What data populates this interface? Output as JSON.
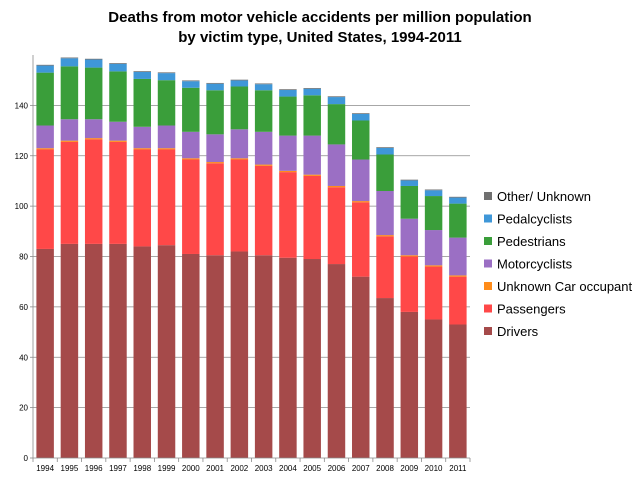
{
  "chart_data": {
    "type": "bar",
    "stacked": true,
    "title_line1": "Deaths from motor vehicle accidents per million population",
    "title_line2": "by victim type, United States, 1994-2011",
    "xlabel": "",
    "ylabel": "",
    "ylim": [
      0,
      160
    ],
    "yticks": [
      0,
      20,
      40,
      60,
      80,
      100,
      120,
      140
    ],
    "grid": true,
    "legend_position": "right",
    "categories": [
      "1994",
      "1995",
      "1996",
      "1997",
      "1998",
      "1999",
      "2000",
      "2001",
      "2002",
      "2003",
      "2004",
      "2005",
      "2006",
      "2007",
      "2008",
      "2009",
      "2010",
      "2011"
    ],
    "series": [
      {
        "name": "Drivers",
        "color": "#a54a4a",
        "values": [
          83,
          85,
          85,
          85,
          84,
          84.5,
          81,
          80.5,
          82,
          80.5,
          79.5,
          79,
          77,
          72,
          63.5,
          58,
          55,
          53
        ]
      },
      {
        "name": "Passengers",
        "color": "#ff4848",
        "values": [
          39.5,
          40.5,
          41.5,
          40.5,
          38.5,
          38,
          37.5,
          36.5,
          36.5,
          35.5,
          34,
          33,
          30.5,
          29.5,
          24.5,
          22,
          21,
          19
        ]
      },
      {
        "name": "Unknown Car occupant",
        "color": "#ff8c1a",
        "values": [
          0.5,
          0.5,
          0.5,
          0.5,
          0.5,
          0.5,
          0.5,
          0.5,
          0.5,
          0.5,
          0.5,
          0.5,
          0.5,
          0.5,
          0.5,
          0.5,
          0.5,
          0.5
        ]
      },
      {
        "name": "Motorcyclists",
        "color": "#9b6fc4",
        "values": [
          9,
          8.5,
          7.5,
          7.5,
          8.5,
          9,
          10.5,
          11,
          11.5,
          13,
          14,
          15.5,
          16.5,
          16.5,
          17.5,
          14.5,
          14,
          15
        ]
      },
      {
        "name": "Pedestrians",
        "color": "#3a9e3a",
        "values": [
          21,
          21,
          20.5,
          20,
          19,
          18,
          17.5,
          17.5,
          17,
          16.5,
          15.5,
          16,
          16,
          15.5,
          14.5,
          13,
          13.5,
          13.5
        ]
      },
      {
        "name": "Pedalcyclists",
        "color": "#3f97d8",
        "values": [
          2.8,
          3.2,
          3.2,
          3,
          2.8,
          2.8,
          2.6,
          2.6,
          2.4,
          2.4,
          2.6,
          2.6,
          2.8,
          2.6,
          2.6,
          2.2,
          2.3,
          2.4
        ]
      },
      {
        "name": "Other/ Unknown",
        "color": "#707070",
        "values": [
          0.3,
          0.3,
          0.3,
          0.3,
          0.3,
          0.3,
          0.3,
          0.3,
          0.3,
          0.3,
          0.3,
          0.3,
          0.3,
          0.3,
          0.3,
          0.3,
          0.3,
          0.3
        ]
      }
    ]
  }
}
